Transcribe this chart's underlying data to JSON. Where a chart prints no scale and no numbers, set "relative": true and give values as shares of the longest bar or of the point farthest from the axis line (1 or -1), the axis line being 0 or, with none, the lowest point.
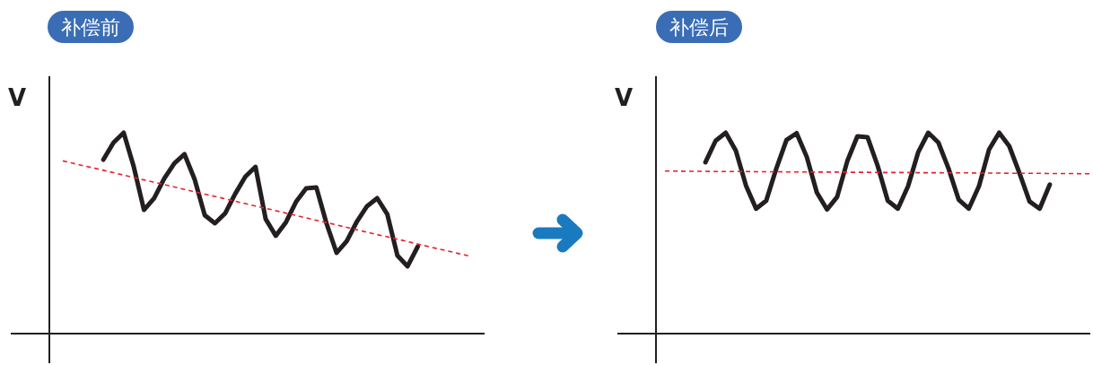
{
  "chart_data": [
    {
      "type": "line",
      "title": "补偿前",
      "ylabel": "V",
      "relative": true,
      "categories": [
        null,
        null,
        null,
        null,
        null,
        null,
        null,
        null,
        null,
        null,
        null,
        null,
        null,
        null,
        null,
        null,
        null,
        null,
        null,
        null,
        null,
        null,
        null,
        null,
        null,
        null,
        null,
        null,
        null,
        null,
        null,
        null,
        null,
        null,
        null,
        null,
        null,
        null,
        null,
        null,
        null
      ],
      "series": [
        {
          "color": "#231f20",
          "line_style": "solid",
          "values": [
            null,
            null,
            null,
            null,
            0.866,
            0.951,
            1.0,
            0.83,
            0.616,
            0.674,
            0.772,
            0.848,
            0.893,
            0.768,
            0.589,
            0.549,
            0.598,
            0.696,
            0.781,
            0.83,
            0.571,
            0.487,
            0.554,
            0.656,
            0.723,
            0.728,
            0.549,
            0.402,
            0.46,
            0.558,
            0.634,
            0.674,
            0.594,
            0.388,
            0.335,
            0.433,
            null,
            null,
            null,
            null,
            null
          ]
        },
        {
          "color": "#e8202a",
          "line_style": "dashed",
          "values": [
            0.86,
            0.848,
            0.836,
            0.825,
            0.813,
            0.801,
            0.789,
            0.777,
            0.765,
            0.754,
            0.742,
            0.73,
            0.718,
            0.706,
            0.694,
            0.683,
            0.671,
            0.659,
            0.647,
            0.635,
            0.624,
            0.612,
            0.6,
            0.588,
            0.576,
            0.564,
            0.553,
            0.541,
            0.529,
            0.517,
            0.505,
            0.493,
            0.482,
            0.47,
            0.458,
            0.446,
            0.434,
            0.422,
            0.411,
            0.399,
            0.387
          ]
        }
      ]
    },
    {
      "type": "line",
      "title": "补偿后",
      "ylabel": "V",
      "relative": true,
      "categories": [
        null,
        null,
        null,
        null,
        null,
        null,
        null,
        null,
        null,
        null,
        null,
        null,
        null,
        null,
        null,
        null,
        null,
        null,
        null,
        null,
        null,
        null,
        null,
        null,
        null,
        null,
        null,
        null,
        null,
        null,
        null,
        null,
        null,
        null,
        null,
        null,
        null,
        null,
        null,
        null,
        null,
        null,
        null
      ],
      "series": [
        {
          "color": "#231f20",
          "line_style": "solid",
          "values": [
            null,
            null,
            null,
            null,
            0.853,
            0.96,
            1.0,
            0.911,
            0.737,
            0.622,
            0.662,
            0.822,
            0.964,
            0.998,
            0.88,
            0.702,
            0.618,
            0.68,
            0.858,
            0.982,
            0.978,
            0.836,
            0.662,
            0.622,
            0.733,
            0.902,
            1.0,
            0.951,
            0.822,
            0.667,
            0.622,
            0.733,
            0.916,
            1.0,
            0.933,
            0.8,
            0.658,
            0.622,
            0.742,
            null,
            null,
            null,
            null
          ]
        },
        {
          "color": "#e8202a",
          "line_style": "dashed",
          "values": [
            0.809,
            0.809,
            0.808,
            0.808,
            0.808,
            0.807,
            0.807,
            0.807,
            0.807,
            0.806,
            0.806,
            0.806,
            0.805,
            0.805,
            0.805,
            0.804,
            0.804,
            0.804,
            0.803,
            0.803,
            0.803,
            0.802,
            0.802,
            0.802,
            0.802,
            0.801,
            0.801,
            0.801,
            0.8,
            0.8,
            0.8,
            0.799,
            0.799,
            0.799,
            0.798,
            0.798,
            0.798,
            0.798,
            0.797,
            0.797,
            0.797,
            0.796,
            0.796
          ]
        }
      ]
    }
  ]
}
